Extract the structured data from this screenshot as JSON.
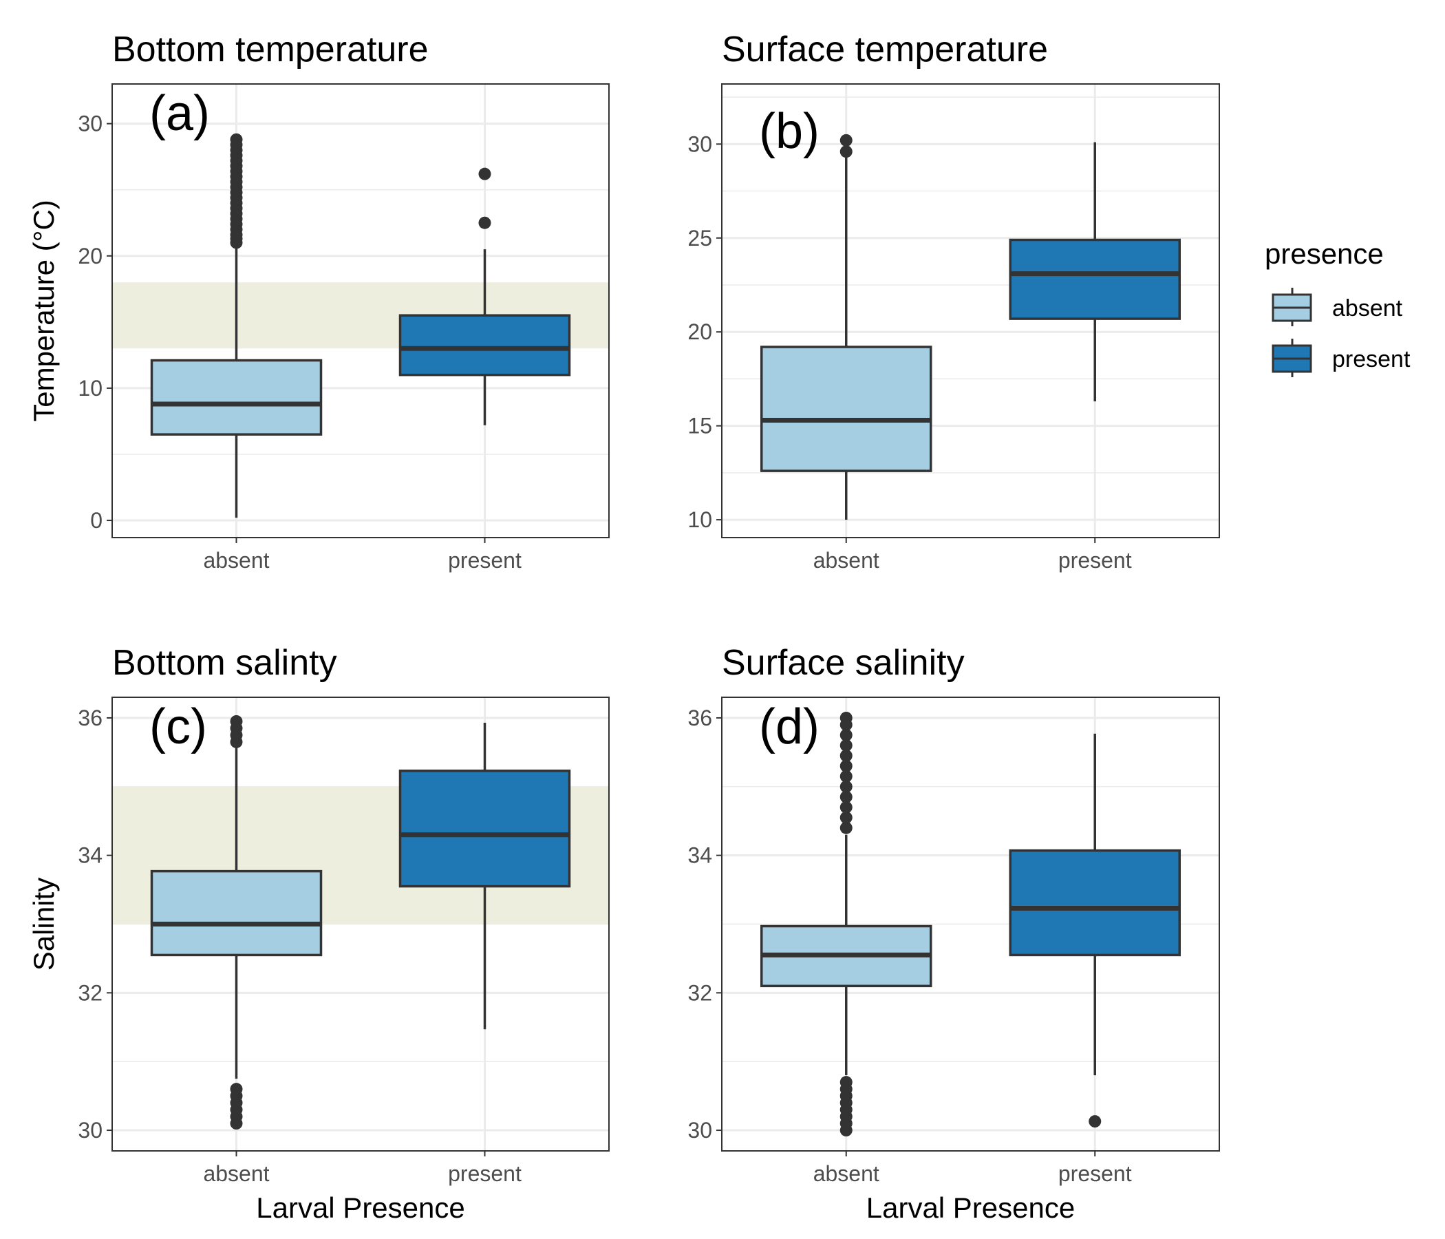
{
  "legend": {
    "title": "presence",
    "entries": [
      {
        "label": "absent",
        "color": "#a6cee3"
      },
      {
        "label": "present",
        "color": "#1f78b4"
      }
    ]
  },
  "colors": {
    "absent": "#a6cee3",
    "present": "#1f78b4",
    "band": "#eeeedf",
    "outline": "#333333",
    "grid": "#ebebeb"
  },
  "chart_data": [
    {
      "type": "box",
      "title": "Bottom temperature",
      "tag": "(a)",
      "xlabel": "",
      "ylabel": "Temperature (°C)",
      "categories": [
        "absent",
        "present"
      ],
      "ylim": [
        -1.3,
        33
      ],
      "yticks": [
        0,
        10,
        20,
        30
      ],
      "band": [
        13,
        18
      ],
      "boxes": [
        {
          "q1": 6.5,
          "median": 8.8,
          "q3": 12.1,
          "lower": 0.2,
          "upper": 20.8,
          "outliers": [
            21,
            21.3,
            21.6,
            22,
            22.4,
            22.8,
            23.2,
            23.6,
            24,
            24.4,
            24.8,
            25.2,
            25.6,
            26,
            26.4,
            26.8,
            27.2,
            27.6,
            28,
            28.4,
            28.8
          ]
        },
        {
          "q1": 11,
          "median": 13,
          "q3": 15.5,
          "lower": 7.2,
          "upper": 20.5,
          "outliers": [
            22.5,
            26.2
          ]
        }
      ]
    },
    {
      "type": "box",
      "title": "Surface temperature",
      "tag": "(b)",
      "xlabel": "",
      "ylabel": "",
      "categories": [
        "absent",
        "present"
      ],
      "ylim": [
        9.05,
        33.2
      ],
      "yticks": [
        10,
        15,
        20,
        25,
        30
      ],
      "band": null,
      "boxes": [
        {
          "q1": 12.6,
          "median": 15.3,
          "q3": 19.2,
          "lower": 10,
          "upper": 29.4,
          "outliers": [
            29.6,
            30.2
          ]
        },
        {
          "q1": 20.7,
          "median": 23.1,
          "q3": 24.9,
          "lower": 16.3,
          "upper": 30.1,
          "outliers": []
        }
      ]
    },
    {
      "type": "box",
      "title": "Bottom salinty",
      "tag": "(c)",
      "xlabel": "Larval Presence",
      "ylabel": "Salinity",
      "categories": [
        "absent",
        "present"
      ],
      "ylim": [
        29.7,
        36.3
      ],
      "yticks": [
        30,
        32,
        34,
        36
      ],
      "band": [
        33,
        35
      ],
      "boxes": [
        {
          "q1": 32.55,
          "median": 33,
          "q3": 33.77,
          "lower": 30.75,
          "upper": 35.6,
          "outliers": [
            30.1,
            30.2,
            30.3,
            30.4,
            30.5,
            30.6,
            35.65,
            35.75,
            35.85,
            35.95
          ]
        },
        {
          "q1": 33.55,
          "median": 34.3,
          "q3": 35.23,
          "lower": 31.47,
          "upper": 35.93,
          "outliers": []
        }
      ]
    },
    {
      "type": "box",
      "title": "Surface salinity",
      "tag": "(d)",
      "xlabel": "Larval Presence",
      "ylabel": "",
      "categories": [
        "absent",
        "present"
      ],
      "ylim": [
        29.7,
        36.3
      ],
      "yticks": [
        30,
        32,
        34,
        36
      ],
      "band": null,
      "boxes": [
        {
          "q1": 32.1,
          "median": 32.55,
          "q3": 32.97,
          "lower": 30.8,
          "upper": 34.3,
          "outliers": [
            30.0,
            30.1,
            30.2,
            30.3,
            30.4,
            30.5,
            30.6,
            30.7,
            34.4,
            34.55,
            34.7,
            34.85,
            35.0,
            35.15,
            35.3,
            35.45,
            35.6,
            35.75,
            35.9,
            36.0
          ]
        },
        {
          "q1": 32.55,
          "median": 33.23,
          "q3": 34.07,
          "lower": 30.8,
          "upper": 35.77,
          "outliers": [
            30.13
          ]
        }
      ]
    }
  ]
}
